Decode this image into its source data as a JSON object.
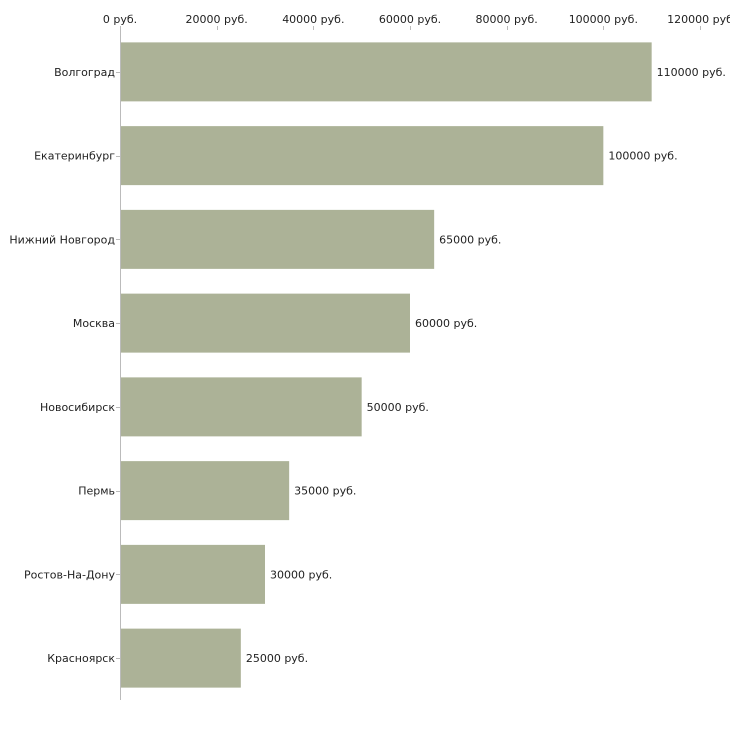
{
  "chart_data": {
    "type": "bar",
    "orientation": "horizontal",
    "title": "",
    "xlabel": "",
    "ylabel": "",
    "xlim": [
      0,
      120000
    ],
    "x_ticks": [
      0,
      20000,
      40000,
      60000,
      80000,
      100000,
      120000
    ],
    "tick_labels": [
      "0 руб.",
      "20000 руб.",
      "40000 руб.",
      "60000 руб.",
      "80000 руб.",
      "100000 руб.",
      "120000 руб"
    ],
    "axis_position": "top",
    "grid": false,
    "bar_color": "#acb297",
    "categories": [
      "Волгоград",
      "Екатеринбург",
      "Нижний Новгород",
      "Москва",
      "Новосибирск",
      "Пермь",
      "Ростов-На-Дону",
      "Красноярск"
    ],
    "values": [
      110000,
      100000,
      65000,
      60000,
      50000,
      35000,
      30000,
      25000
    ],
    "value_labels": [
      "110000 руб.",
      "100000 руб.",
      "65000 руб.",
      "60000 руб.",
      "50000 руб.",
      "35000 руб.",
      "30000 руб.",
      "25000 руб."
    ]
  }
}
